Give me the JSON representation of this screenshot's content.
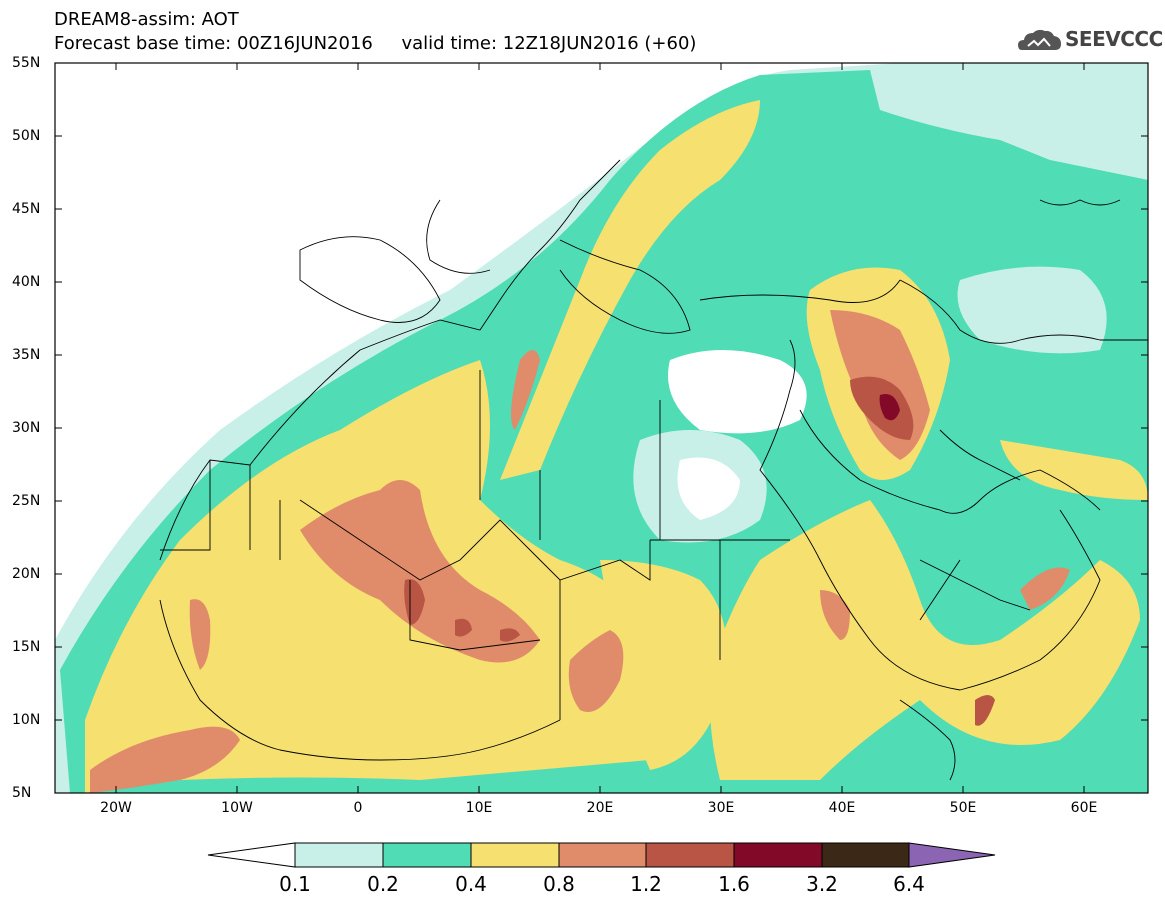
{
  "header": {
    "line1": "DREAM8-assim: AOT",
    "base_label": "Forecast base time: 00Z16JUN2016",
    "valid_label": "valid time: 12Z18JUN2016 (+60)",
    "logo_text": "SEEVCCC",
    "logo_icon": "cloud-logo-icon"
  },
  "axes": {
    "lat_labels": [
      "55N",
      "50N",
      "45N",
      "40N",
      "35N",
      "30N",
      "25N",
      "20N",
      "15N",
      "10N",
      "5N"
    ],
    "lon_labels": [
      "20W",
      "10W",
      "0",
      "10E",
      "20E",
      "30E",
      "40E",
      "50E",
      "60E"
    ],
    "lon_range": [
      -25,
      65
    ],
    "lat_range": [
      5,
      55
    ]
  },
  "colorbar": {
    "levels": [
      "0.1",
      "0.2",
      "0.4",
      "0.8",
      "1.2",
      "1.6",
      "3.2",
      "6.4"
    ],
    "colors": [
      "#c8f0e8",
      "#50dcb4",
      "#f5e070",
      "#e08c6a",
      "#b85544",
      "#820a28",
      "#3c2816",
      "#8c64b4"
    ],
    "left_arrow_color": "#ffffff",
    "right_arrow_color": "#8c64b4"
  }
}
